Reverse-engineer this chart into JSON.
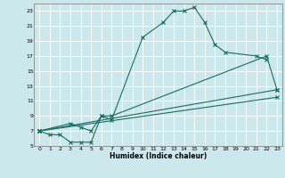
{
  "title": "",
  "xlabel": "Humidex (Indice chaleur)",
  "bg_color": "#cce8ec",
  "grid_color": "#ffffff",
  "line_color": "#1a6b5e",
  "xlim": [
    -0.5,
    23.5
  ],
  "ylim": [
    5,
    24
  ],
  "xticks": [
    0,
    1,
    2,
    3,
    4,
    5,
    6,
    7,
    8,
    9,
    10,
    11,
    12,
    13,
    14,
    15,
    16,
    17,
    18,
    19,
    20,
    21,
    22,
    23
  ],
  "yticks": [
    5,
    7,
    9,
    11,
    13,
    15,
    17,
    19,
    21,
    23
  ],
  "curve1_x": [
    0,
    1,
    2,
    3,
    4,
    5,
    6,
    7,
    10,
    12,
    13,
    14,
    15,
    16,
    17,
    18,
    21,
    22
  ],
  "curve1_y": [
    7,
    6.5,
    6.5,
    5.5,
    5.5,
    5.5,
    9.0,
    8.5,
    19.5,
    21.5,
    23,
    23,
    23.5,
    21.5,
    18.5,
    17.5,
    17,
    16.5
  ],
  "curve2_x": [
    0,
    3,
    4,
    5,
    6,
    7,
    22,
    23
  ],
  "curve2_y": [
    7,
    8,
    7.5,
    7,
    9,
    9,
    17,
    12.5
  ],
  "line1_x": [
    0,
    23
  ],
  "line1_y": [
    7,
    12.5
  ],
  "line2_x": [
    0,
    23
  ],
  "line2_y": [
    7,
    11.5
  ]
}
